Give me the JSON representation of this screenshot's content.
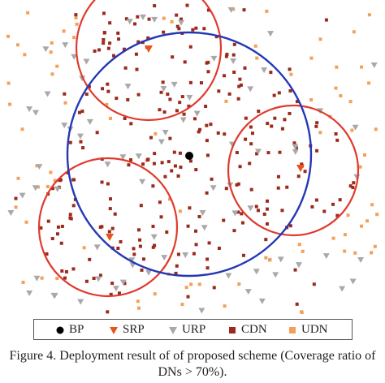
{
  "colors": {
    "bp": "#000000",
    "srp": "#e8541a",
    "urp": "#a9a9a9",
    "cdn": "#9b2a1c",
    "udn": "#f2a15a",
    "coverage_circle": "#e03a2e",
    "bp_circle": "#2438b5"
  },
  "legend": {
    "items": [
      {
        "key": "bp",
        "label": "BP",
        "icon": "filled-circle"
      },
      {
        "key": "srp",
        "label": "SRP",
        "icon": "down-triangle"
      },
      {
        "key": "urp",
        "label": "URP",
        "icon": "down-triangle"
      },
      {
        "key": "cdn",
        "label": "CDN",
        "icon": "square"
      },
      {
        "key": "udn",
        "label": "UDN",
        "icon": "square"
      }
    ]
  },
  "caption": {
    "line1": "Figure 4.  Deployment result of of proposed scheme (Coverage ratio of",
    "line2": "DNs > 70%)."
  }
}
